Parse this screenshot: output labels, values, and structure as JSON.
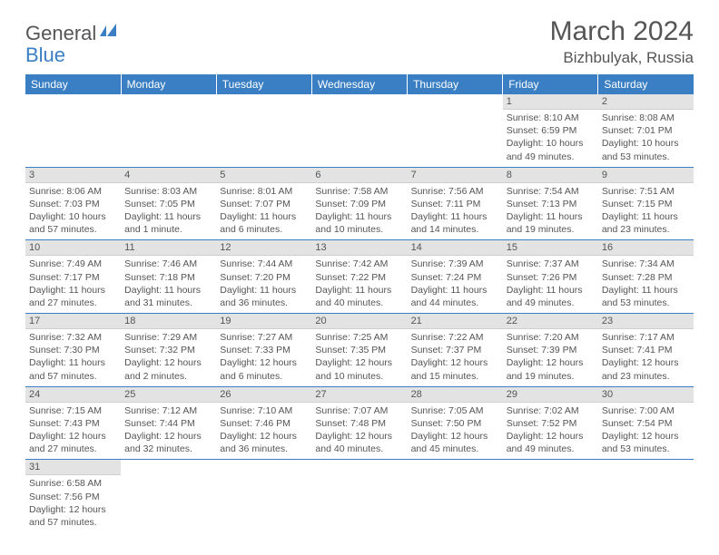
{
  "logo": {
    "text1": "General",
    "text2": "Blue",
    "color_general": "#555555",
    "color_blue": "#3a7fc4"
  },
  "title": "March 2024",
  "location": "Bizhbulyak, Russia",
  "colors": {
    "header_bg": "#3a7fc4",
    "header_fg": "#ffffff",
    "daynum_bg": "#e3e3e3",
    "cell_border": "#3a7fc4",
    "text": "#555555"
  },
  "weekdays": [
    "Sunday",
    "Monday",
    "Tuesday",
    "Wednesday",
    "Thursday",
    "Friday",
    "Saturday"
  ],
  "weeks": [
    [
      null,
      null,
      null,
      null,
      null,
      {
        "n": "1",
        "sunrise": "8:10 AM",
        "sunset": "6:59 PM",
        "daylight": "10 hours and 49 minutes."
      },
      {
        "n": "2",
        "sunrise": "8:08 AM",
        "sunset": "7:01 PM",
        "daylight": "10 hours and 53 minutes."
      }
    ],
    [
      {
        "n": "3",
        "sunrise": "8:06 AM",
        "sunset": "7:03 PM",
        "daylight": "10 hours and 57 minutes."
      },
      {
        "n": "4",
        "sunrise": "8:03 AM",
        "sunset": "7:05 PM",
        "daylight": "11 hours and 1 minute."
      },
      {
        "n": "5",
        "sunrise": "8:01 AM",
        "sunset": "7:07 PM",
        "daylight": "11 hours and 6 minutes."
      },
      {
        "n": "6",
        "sunrise": "7:58 AM",
        "sunset": "7:09 PM",
        "daylight": "11 hours and 10 minutes."
      },
      {
        "n": "7",
        "sunrise": "7:56 AM",
        "sunset": "7:11 PM",
        "daylight": "11 hours and 14 minutes."
      },
      {
        "n": "8",
        "sunrise": "7:54 AM",
        "sunset": "7:13 PM",
        "daylight": "11 hours and 19 minutes."
      },
      {
        "n": "9",
        "sunrise": "7:51 AM",
        "sunset": "7:15 PM",
        "daylight": "11 hours and 23 minutes."
      }
    ],
    [
      {
        "n": "10",
        "sunrise": "7:49 AM",
        "sunset": "7:17 PM",
        "daylight": "11 hours and 27 minutes."
      },
      {
        "n": "11",
        "sunrise": "7:46 AM",
        "sunset": "7:18 PM",
        "daylight": "11 hours and 31 minutes."
      },
      {
        "n": "12",
        "sunrise": "7:44 AM",
        "sunset": "7:20 PM",
        "daylight": "11 hours and 36 minutes."
      },
      {
        "n": "13",
        "sunrise": "7:42 AM",
        "sunset": "7:22 PM",
        "daylight": "11 hours and 40 minutes."
      },
      {
        "n": "14",
        "sunrise": "7:39 AM",
        "sunset": "7:24 PM",
        "daylight": "11 hours and 44 minutes."
      },
      {
        "n": "15",
        "sunrise": "7:37 AM",
        "sunset": "7:26 PM",
        "daylight": "11 hours and 49 minutes."
      },
      {
        "n": "16",
        "sunrise": "7:34 AM",
        "sunset": "7:28 PM",
        "daylight": "11 hours and 53 minutes."
      }
    ],
    [
      {
        "n": "17",
        "sunrise": "7:32 AM",
        "sunset": "7:30 PM",
        "daylight": "11 hours and 57 minutes."
      },
      {
        "n": "18",
        "sunrise": "7:29 AM",
        "sunset": "7:32 PM",
        "daylight": "12 hours and 2 minutes."
      },
      {
        "n": "19",
        "sunrise": "7:27 AM",
        "sunset": "7:33 PM",
        "daylight": "12 hours and 6 minutes."
      },
      {
        "n": "20",
        "sunrise": "7:25 AM",
        "sunset": "7:35 PM",
        "daylight": "12 hours and 10 minutes."
      },
      {
        "n": "21",
        "sunrise": "7:22 AM",
        "sunset": "7:37 PM",
        "daylight": "12 hours and 15 minutes."
      },
      {
        "n": "22",
        "sunrise": "7:20 AM",
        "sunset": "7:39 PM",
        "daylight": "12 hours and 19 minutes."
      },
      {
        "n": "23",
        "sunrise": "7:17 AM",
        "sunset": "7:41 PM",
        "daylight": "12 hours and 23 minutes."
      }
    ],
    [
      {
        "n": "24",
        "sunrise": "7:15 AM",
        "sunset": "7:43 PM",
        "daylight": "12 hours and 27 minutes."
      },
      {
        "n": "25",
        "sunrise": "7:12 AM",
        "sunset": "7:44 PM",
        "daylight": "12 hours and 32 minutes."
      },
      {
        "n": "26",
        "sunrise": "7:10 AM",
        "sunset": "7:46 PM",
        "daylight": "12 hours and 36 minutes."
      },
      {
        "n": "27",
        "sunrise": "7:07 AM",
        "sunset": "7:48 PM",
        "daylight": "12 hours and 40 minutes."
      },
      {
        "n": "28",
        "sunrise": "7:05 AM",
        "sunset": "7:50 PM",
        "daylight": "12 hours and 45 minutes."
      },
      {
        "n": "29",
        "sunrise": "7:02 AM",
        "sunset": "7:52 PM",
        "daylight": "12 hours and 49 minutes."
      },
      {
        "n": "30",
        "sunrise": "7:00 AM",
        "sunset": "7:54 PM",
        "daylight": "12 hours and 53 minutes."
      }
    ],
    [
      {
        "n": "31",
        "sunrise": "6:58 AM",
        "sunset": "7:56 PM",
        "daylight": "12 hours and 57 minutes."
      },
      null,
      null,
      null,
      null,
      null,
      null
    ]
  ]
}
